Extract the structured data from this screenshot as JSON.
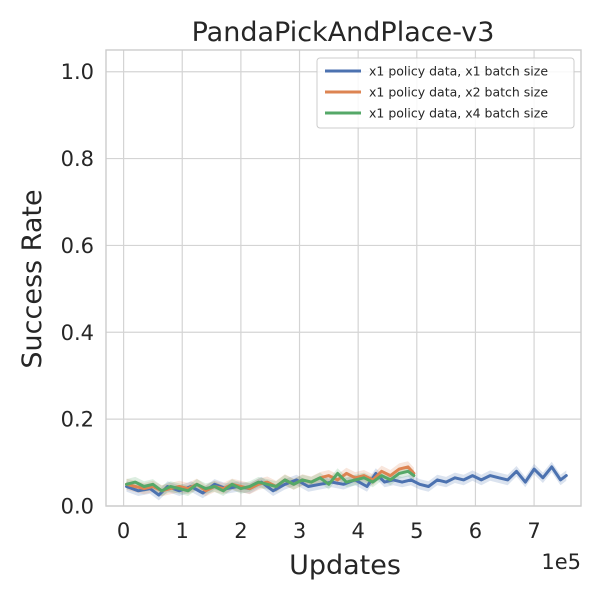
{
  "chart_data": {
    "type": "line",
    "title": "PandaPickAndPlace-v3",
    "xlabel": "Updates",
    "ylabel": "Success Rate",
    "x_offset_text": "1e5",
    "xlim": [
      -0.3,
      7.8
    ],
    "ylim": [
      0.0,
      1.05
    ],
    "x_ticks": [
      0,
      1,
      2,
      3,
      4,
      5,
      6,
      7
    ],
    "x_tick_labels": [
      "0",
      "1",
      "2",
      "3",
      "4",
      "5",
      "6",
      "7"
    ],
    "y_ticks": [
      0.0,
      0.2,
      0.4,
      0.6,
      0.8,
      1.0
    ],
    "y_tick_labels": [
      "0.0",
      "0.2",
      "0.4",
      "0.6",
      "0.8",
      "1.0"
    ],
    "grid": true,
    "legend_position": "top-right",
    "series": [
      {
        "name": "x1 policy data, x1 batch size",
        "color": "#4c72b0",
        "x": [
          0.05,
          0.25,
          0.45,
          0.6,
          0.75,
          0.95,
          1.15,
          1.35,
          1.55,
          1.75,
          1.95,
          2.15,
          2.35,
          2.55,
          2.75,
          2.95,
          3.15,
          3.35,
          3.55,
          3.75,
          3.95,
          4.15,
          4.3,
          4.45,
          4.6,
          4.75,
          4.9,
          5.05,
          5.2,
          5.35,
          5.5,
          5.65,
          5.8,
          5.95,
          6.1,
          6.25,
          6.4,
          6.55,
          6.7,
          6.85,
          7.0,
          7.15,
          7.3,
          7.45,
          7.55
        ],
        "y": [
          0.045,
          0.035,
          0.04,
          0.025,
          0.045,
          0.035,
          0.045,
          0.03,
          0.05,
          0.04,
          0.045,
          0.04,
          0.055,
          0.035,
          0.05,
          0.06,
          0.045,
          0.05,
          0.055,
          0.05,
          0.06,
          0.045,
          0.075,
          0.055,
          0.06,
          0.055,
          0.06,
          0.05,
          0.045,
          0.06,
          0.055,
          0.065,
          0.06,
          0.07,
          0.06,
          0.07,
          0.065,
          0.06,
          0.08,
          0.055,
          0.085,
          0.065,
          0.09,
          0.06,
          0.07
        ],
        "band": 0.012
      },
      {
        "name": "x1 policy data, x2 batch size",
        "color": "#dd8452",
        "x": [
          0.05,
          0.2,
          0.35,
          0.5,
          0.65,
          0.8,
          0.95,
          1.1,
          1.25,
          1.4,
          1.55,
          1.7,
          1.85,
          2.0,
          2.15,
          2.3,
          2.45,
          2.6,
          2.75,
          2.9,
          3.05,
          3.2,
          3.35,
          3.5,
          3.65,
          3.8,
          3.95,
          4.1,
          4.25,
          4.4,
          4.55,
          4.7,
          4.85,
          4.95
        ],
        "y": [
          0.05,
          0.045,
          0.04,
          0.045,
          0.035,
          0.04,
          0.045,
          0.04,
          0.05,
          0.035,
          0.045,
          0.04,
          0.05,
          0.045,
          0.04,
          0.05,
          0.055,
          0.045,
          0.06,
          0.05,
          0.06,
          0.055,
          0.065,
          0.07,
          0.06,
          0.075,
          0.065,
          0.07,
          0.06,
          0.08,
          0.07,
          0.085,
          0.09,
          0.075
        ],
        "band": 0.013
      },
      {
        "name": "x1 policy data, x4 batch size",
        "color": "#55a868",
        "x": [
          0.05,
          0.2,
          0.35,
          0.5,
          0.65,
          0.8,
          0.95,
          1.1,
          1.25,
          1.4,
          1.55,
          1.7,
          1.85,
          2.0,
          2.15,
          2.3,
          2.45,
          2.6,
          2.75,
          2.9,
          3.05,
          3.2,
          3.35,
          3.5,
          3.65,
          3.8,
          3.95,
          4.1,
          4.25,
          4.4,
          4.55,
          4.7,
          4.85,
          4.95
        ],
        "y": [
          0.05,
          0.055,
          0.045,
          0.05,
          0.035,
          0.045,
          0.04,
          0.035,
          0.05,
          0.04,
          0.045,
          0.035,
          0.05,
          0.04,
          0.045,
          0.055,
          0.05,
          0.045,
          0.06,
          0.05,
          0.06,
          0.055,
          0.065,
          0.05,
          0.075,
          0.055,
          0.06,
          0.065,
          0.055,
          0.07,
          0.06,
          0.075,
          0.08,
          0.07
        ],
        "band": 0.012
      }
    ]
  }
}
